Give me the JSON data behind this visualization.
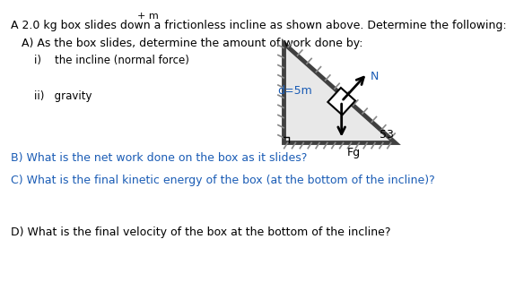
{
  "title_top": "+ m",
  "intro_text": "A 2.0 kg box slides down a frictionless incline as shown above. Determine the following:",
  "section_A": "A) As the box slides, determine the amount of work done by:",
  "item_i": "i)    the incline (normal force)",
  "item_ii": "ii)   gravity",
  "section_B": "B) What is the net work done on the box as it slides?",
  "section_C": "C) What is the final kinetic energy of the box (at the bottom of the incline)?",
  "section_D": "D) What is the final velocity of the box at the bottom of the incline?",
  "label_d": "d=5m",
  "label_angle": "53",
  "label_N": "N",
  "label_Fg": "Fg",
  "bg_color": "#ffffff",
  "text_color": "#000000",
  "blue_color": "#1a5cb5",
  "hatch_color": "#888888",
  "tri_edge_color": "#404040",
  "box_face": "#ffffff",
  "box_edge": "#000000"
}
